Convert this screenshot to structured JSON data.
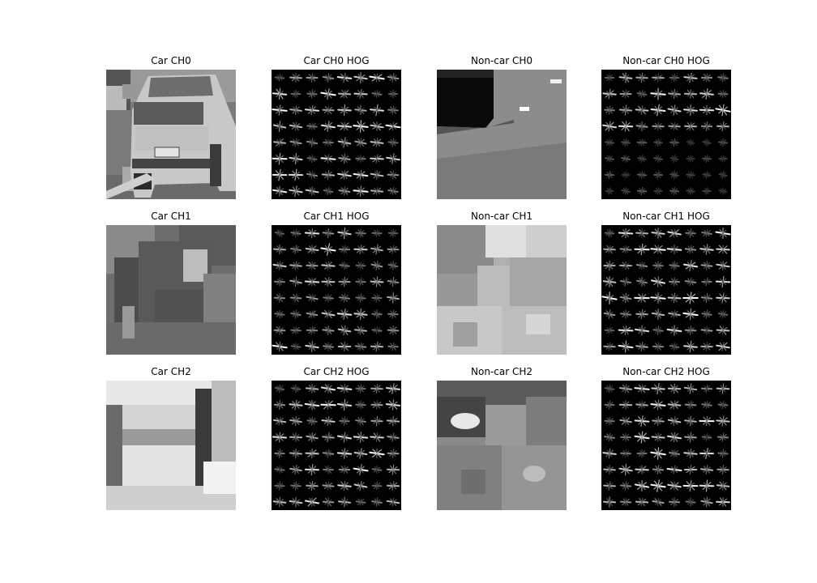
{
  "figure": {
    "panels": [
      {
        "title": "Car CH0",
        "kind": "image"
      },
      {
        "title": "Car CH0 HOG",
        "kind": "hog"
      },
      {
        "title": "Non-car CH0",
        "kind": "image"
      },
      {
        "title": "Non-car CH0 HOG",
        "kind": "hog"
      },
      {
        "title": "Car CH1",
        "kind": "image"
      },
      {
        "title": "Car CH1 HOG",
        "kind": "hog"
      },
      {
        "title": "Non-car CH1",
        "kind": "image"
      },
      {
        "title": "Non-car CH1 HOG",
        "kind": "hog"
      },
      {
        "title": "Car CH2",
        "kind": "image"
      },
      {
        "title": "Car CH2 HOG",
        "kind": "hog"
      },
      {
        "title": "Non-car CH2",
        "kind": "image"
      },
      {
        "title": "Non-car CH2 HOG",
        "kind": "hog"
      }
    ]
  }
}
